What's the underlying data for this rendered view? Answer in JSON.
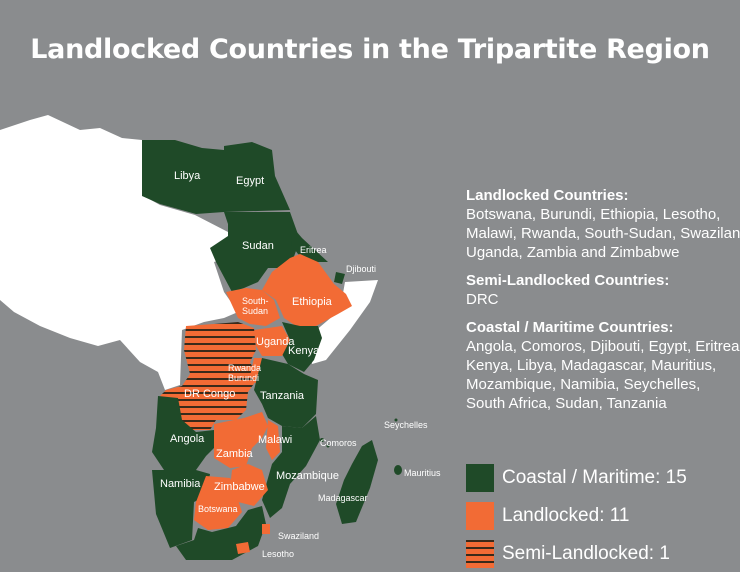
{
  "title": "Landlocked Countries in the Tripartite Region",
  "colors": {
    "coastal": "#1f4a28",
    "landlocked": "#f26b35",
    "semi_stripe": "#3a2a1a",
    "non_member": "#ffffff",
    "background": "#8a8c8e"
  },
  "map_labels": {
    "libya": "Libya",
    "egypt": "Egypt",
    "sudan": "Sudan",
    "eritrea": "Eritrea",
    "djibouti": "Djibouti",
    "south_sudan": "South-\nSudan",
    "ethiopia": "Ethiopia",
    "uganda": "Uganda",
    "kenya": "Kenya",
    "rwanda_burundi": "Rwanda\nBurundi",
    "dr_congo": "DR Congo",
    "tanzania": "Tanzania",
    "angola": "Angola",
    "malawi": "Malawi",
    "comoros": "Comoros",
    "seychelles": "Seychelles",
    "zambia": "Zambia",
    "mozambique": "Mozambique",
    "mauritius": "Mauritius",
    "namibia": "Namibia",
    "zimbabwe": "Zimbabwe",
    "madagascar": "Madagascar",
    "botswana": "Botswana",
    "swaziland": "Swaziland",
    "lesotho": "Lesotho"
  },
  "panel": {
    "landlocked_heading": "Landlocked Countries:",
    "landlocked_lines": [
      "Botswana, Burundi, Ethiopia, Lesotho,",
      "Malawi, Rwanda, South-Sudan, Swaziland,",
      "Uganda, Zambia and Zimbabwe"
    ],
    "semi_heading": "Semi-Landlocked Countries:",
    "semi_lines": [
      "DRC"
    ],
    "coastal_heading": "Coastal / Maritime Countries:",
    "coastal_lines": [
      "Angola, Comoros, Djibouti, Egypt, Eritrea,",
      "Kenya, Libya,  Madagascar, Mauritius,",
      "Mozambique, Namibia, Seychelles,",
      "South Africa, Sudan, Tanzania"
    ]
  },
  "legend": [
    {
      "label": "Coastal / Maritime:  15",
      "key": "coastal"
    },
    {
      "label": "Landlocked: 11",
      "key": "landlocked"
    },
    {
      "label": "Semi-Landlocked: 1",
      "key": "semi"
    }
  ]
}
